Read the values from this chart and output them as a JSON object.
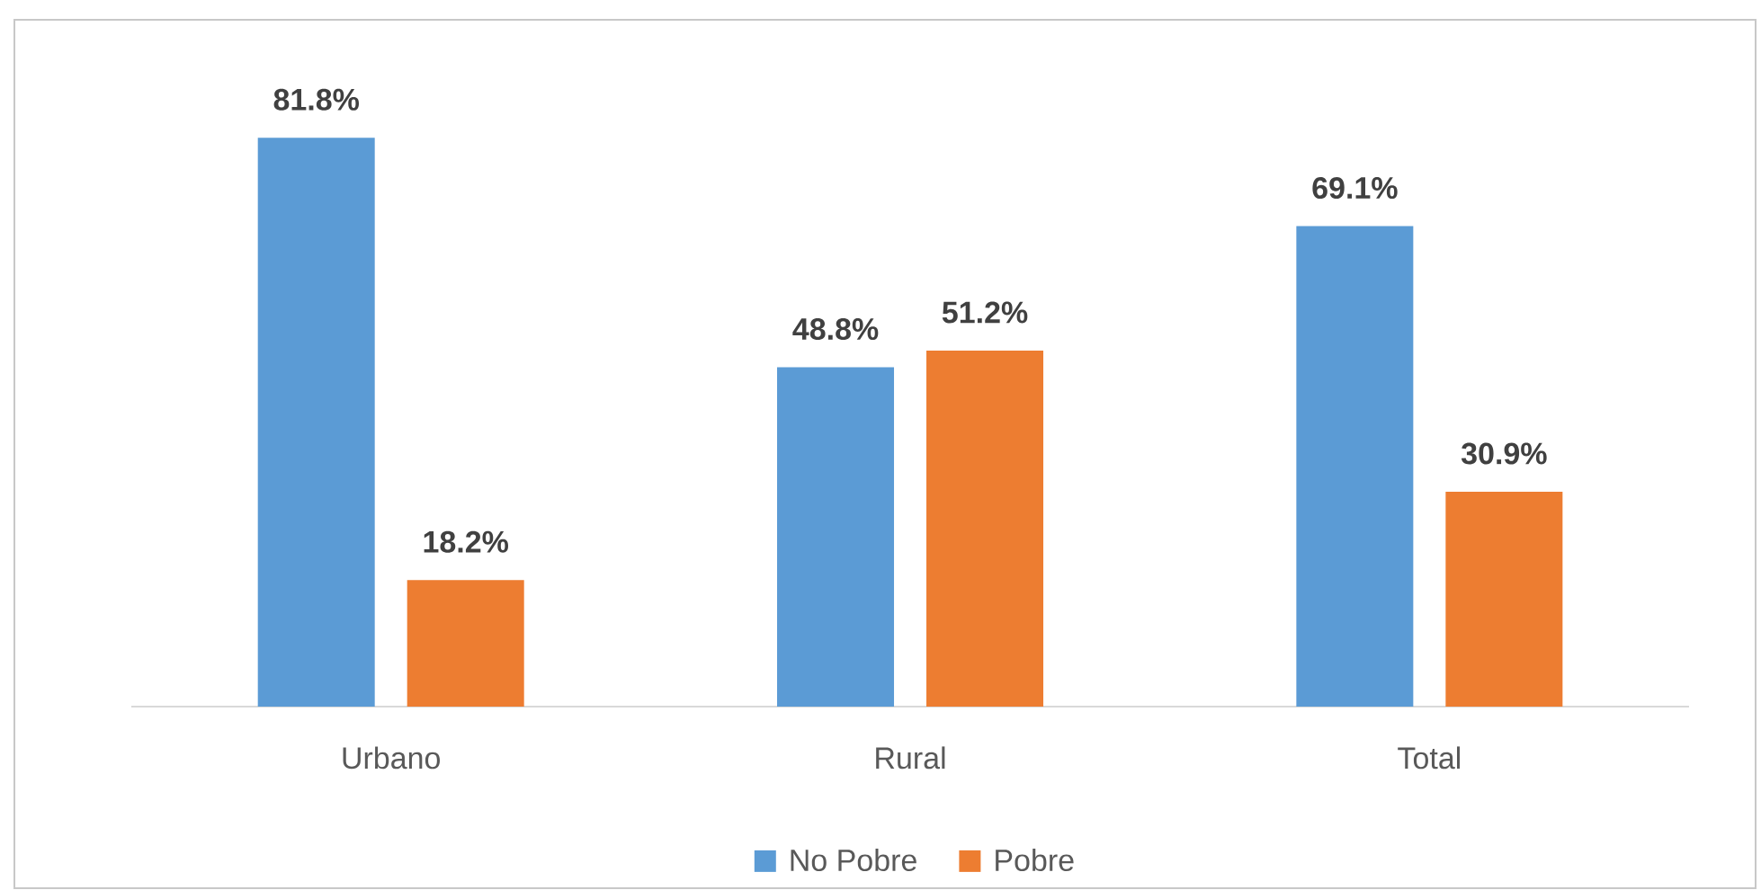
{
  "chart_data": {
    "type": "bar",
    "categories": [
      "Urbano",
      "Rural",
      "Total"
    ],
    "series": [
      {
        "name": "No Pobre",
        "color": "#5b9bd5",
        "values": [
          81.8,
          48.8,
          69.1
        ],
        "value_labels": [
          "81.8%",
          "48.8%",
          "69.1%"
        ]
      },
      {
        "name": "Pobre",
        "color": "#ed7d31",
        "values": [
          18.2,
          51.2,
          30.9
        ],
        "value_labels": [
          "18.2%",
          "51.2%",
          "30.9%"
        ]
      }
    ],
    "tick_labels": "x",
    "legend": "bottom"
  }
}
